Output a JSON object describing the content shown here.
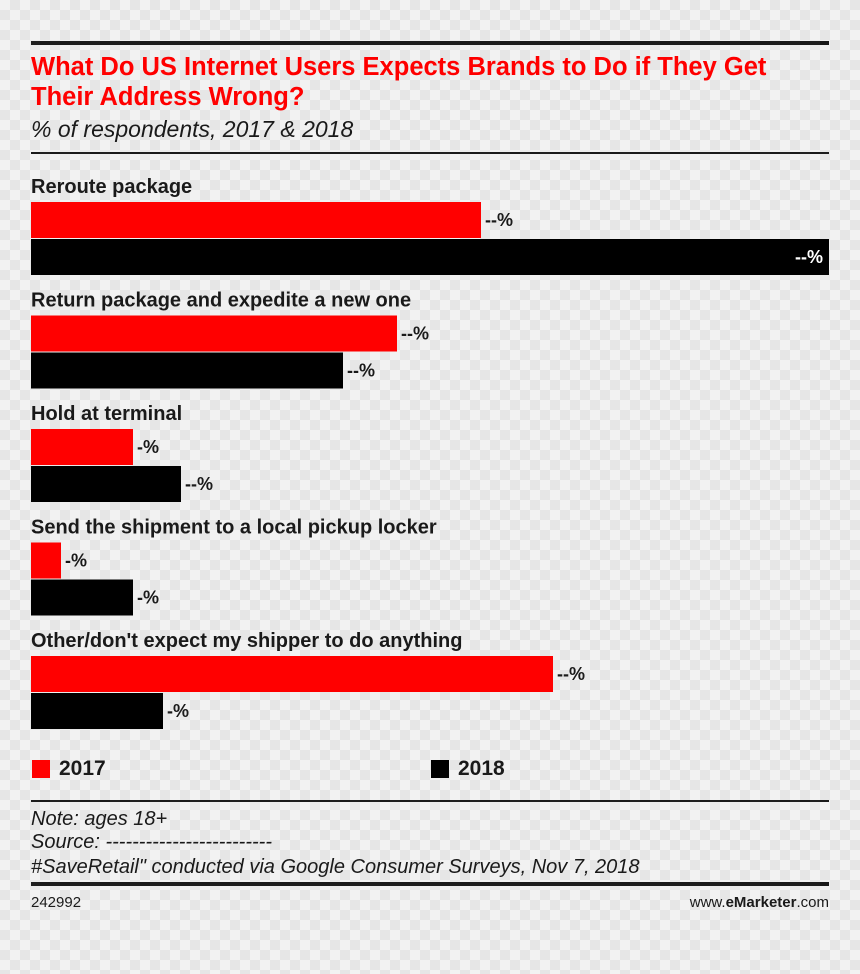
{
  "chart_data": {
    "type": "bar",
    "orientation": "horizontal",
    "title": "What Do US Internet Users Expects Brands to Do if They Get Their Address Wrong?",
    "subtitle": "% of respondents, 2017 & 2018",
    "categories": [
      "Reroute package",
      "Return package and expedite a new one",
      "Hold at terminal",
      "Send the shipment to a local pickup locker",
      "Other/don't expect my shipper to do anything"
    ],
    "series": [
      {
        "name": "2017",
        "color": "#ff0000",
        "values": [
          37.5,
          30.5,
          8.5,
          2.5,
          43.5
        ],
        "labels": [
          "--%",
          "--%",
          "-%",
          "-%",
          "--%"
        ]
      },
      {
        "name": "2018",
        "color": "#000000",
        "values": [
          66.5,
          26.0,
          12.5,
          8.5,
          11.0
        ],
        "labels": [
          "--%",
          "--%",
          "--%",
          "-%",
          "-%"
        ]
      }
    ],
    "xlim": [
      0,
      66.5
    ],
    "grid": false,
    "legend_position": "bottom"
  },
  "legend": {
    "label_2017": "2017",
    "label_2018": "2018"
  },
  "notes": {
    "note": "Note: ages 18+",
    "source": "Source: -------------------------",
    "source_detail": "#SaveRetail\" conducted via Google Consumer Surveys, Nov 7, 2018"
  },
  "footer": {
    "chart_id": "242992",
    "brand_prefix": "www.",
    "brand_bold": "eMarketer",
    "brand_suffix": ".com"
  }
}
